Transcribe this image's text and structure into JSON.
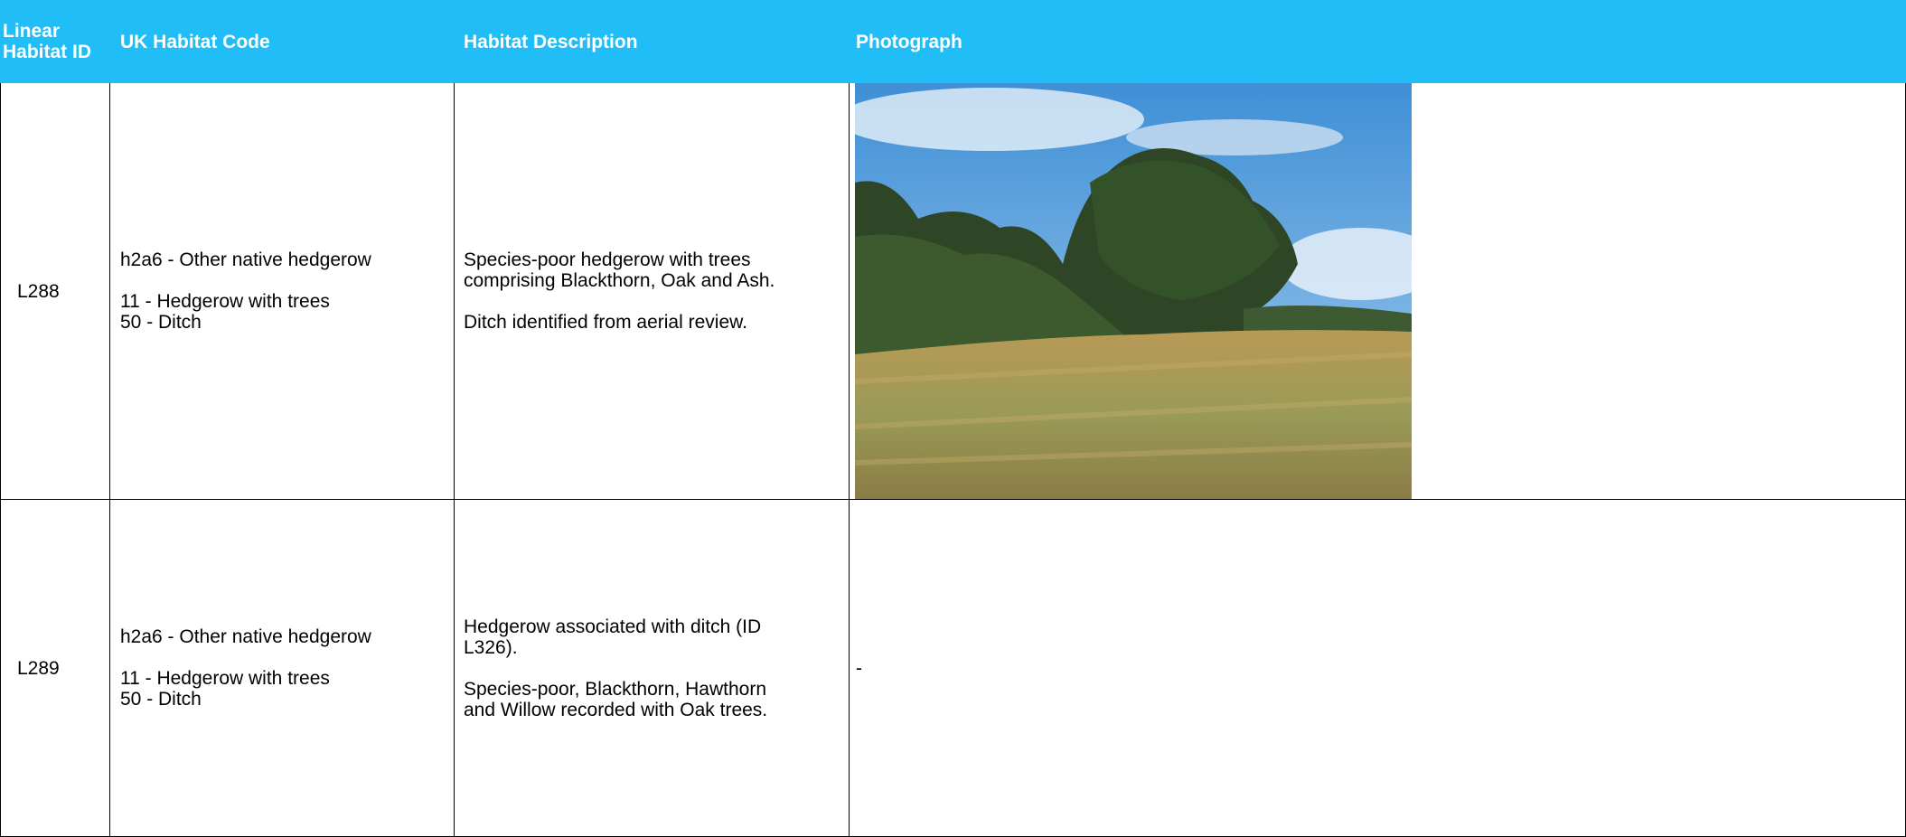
{
  "table": {
    "header": [
      "Linear Habitat ID",
      "UK Habitat Code",
      "Habitat Description",
      "Photograph"
    ],
    "rows": [
      {
        "id": "L288",
        "code": [
          [
            "h2a6 - Other native hedgerow"
          ],
          [
            "11 - Hedgerow with trees",
            "50 - Ditch"
          ]
        ],
        "description": [
          [
            "Species-poor hedgerow with trees",
            "comprising Blackthorn, Oak and Ash."
          ],
          [
            "Ditch identified from aerial review."
          ]
        ]
      },
      {
        "id": "L289",
        "code": [
          [
            "h2a6 - Other native hedgerow"
          ],
          [
            "11 - Hedgerow with trees",
            "50 - Ditch"
          ]
        ],
        "description": [
          [
            "Hedgerow associated with ditch (ID",
            "L326)."
          ],
          [
            "Species-poor, Blackthorn, Hawthorn",
            "and Willow recorded with Oak trees."
          ]
        ],
        "photograph": "-"
      }
    ]
  }
}
